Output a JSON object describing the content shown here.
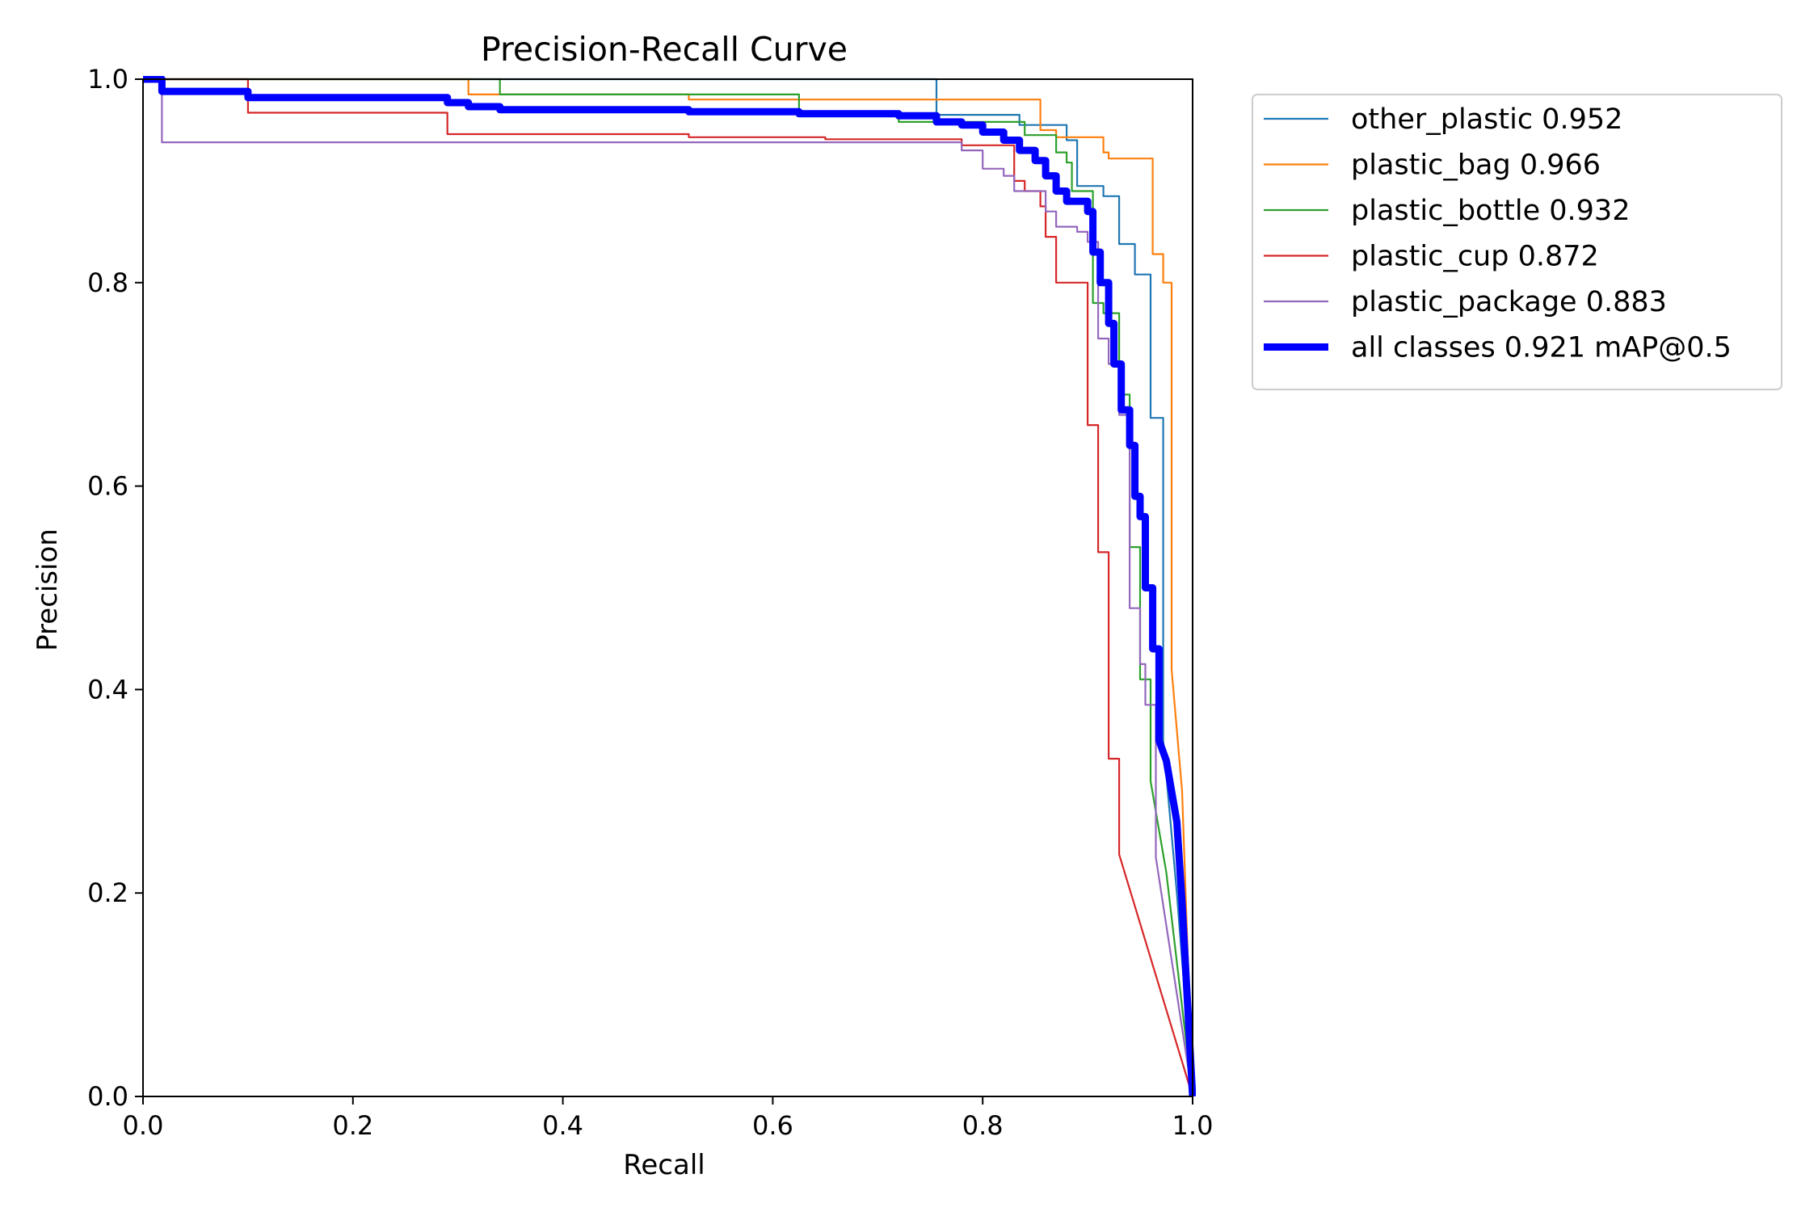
{
  "chart_data": {
    "type": "line",
    "title": "Precision-Recall Curve",
    "xlabel": "Recall",
    "ylabel": "Precision",
    "xlim": [
      0,
      1
    ],
    "ylim": [
      0,
      1
    ],
    "x_ticks": [
      0.0,
      0.2,
      0.4,
      0.6,
      0.8,
      1.0
    ],
    "y_ticks": [
      0.0,
      0.2,
      0.4,
      0.6,
      0.8,
      1.0
    ],
    "x_tick_labels": [
      "0.0",
      "0.2",
      "0.4",
      "0.6",
      "0.8",
      "1.0"
    ],
    "y_tick_labels": [
      "0.0",
      "0.2",
      "0.4",
      "0.6",
      "0.8",
      "1.0"
    ],
    "legend_position": "outside-top-right",
    "series": [
      {
        "name": "other_plastic",
        "label": "other_plastic 0.952",
        "color": "#1f77b4",
        "emphasis": "thin",
        "points": [
          [
            0,
            1
          ],
          [
            0.756,
            1
          ],
          [
            0.756,
            0.965
          ],
          [
            0.835,
            0.965
          ],
          [
            0.835,
            0.955
          ],
          [
            0.88,
            0.955
          ],
          [
            0.88,
            0.94
          ],
          [
            0.89,
            0.94
          ],
          [
            0.89,
            0.895
          ],
          [
            0.915,
            0.895
          ],
          [
            0.915,
            0.885
          ],
          [
            0.93,
            0.885
          ],
          [
            0.93,
            0.838
          ],
          [
            0.945,
            0.838
          ],
          [
            0.945,
            0.808
          ],
          [
            0.96,
            0.808
          ],
          [
            0.96,
            0.667
          ],
          [
            0.972,
            0.667
          ],
          [
            0.972,
            0.35
          ],
          [
            0.985,
            0.2
          ],
          [
            1,
            0.0
          ]
        ]
      },
      {
        "name": "plastic_bag",
        "label": "plastic_bag 0.966",
        "color": "#ff7f0e",
        "emphasis": "thin",
        "points": [
          [
            0,
            1
          ],
          [
            0.31,
            1
          ],
          [
            0.31,
            0.985
          ],
          [
            0.52,
            0.985
          ],
          [
            0.52,
            0.98
          ],
          [
            0.855,
            0.98
          ],
          [
            0.855,
            0.95
          ],
          [
            0.87,
            0.95
          ],
          [
            0.87,
            0.943
          ],
          [
            0.915,
            0.943
          ],
          [
            0.915,
            0.928
          ],
          [
            0.92,
            0.928
          ],
          [
            0.92,
            0.922
          ],
          [
            0.962,
            0.922
          ],
          [
            0.962,
            0.828
          ],
          [
            0.972,
            0.828
          ],
          [
            0.972,
            0.8
          ],
          [
            0.98,
            0.8
          ],
          [
            0.98,
            0.42
          ],
          [
            0.99,
            0.3
          ],
          [
            1,
            0.0
          ]
        ]
      },
      {
        "name": "plastic_bottle",
        "label": "plastic_bottle 0.932",
        "color": "#2ca02c",
        "emphasis": "thin",
        "points": [
          [
            0,
            1
          ],
          [
            0.34,
            1
          ],
          [
            0.34,
            0.985
          ],
          [
            0.625,
            0.985
          ],
          [
            0.625,
            0.968
          ],
          [
            0.72,
            0.968
          ],
          [
            0.72,
            0.958
          ],
          [
            0.84,
            0.958
          ],
          [
            0.84,
            0.945
          ],
          [
            0.87,
            0.945
          ],
          [
            0.87,
            0.928
          ],
          [
            0.88,
            0.928
          ],
          [
            0.88,
            0.918
          ],
          [
            0.885,
            0.918
          ],
          [
            0.885,
            0.89
          ],
          [
            0.905,
            0.89
          ],
          [
            0.905,
            0.78
          ],
          [
            0.915,
            0.78
          ],
          [
            0.915,
            0.77
          ],
          [
            0.93,
            0.77
          ],
          [
            0.93,
            0.69
          ],
          [
            0.94,
            0.69
          ],
          [
            0.94,
            0.54
          ],
          [
            0.95,
            0.54
          ],
          [
            0.95,
            0.41
          ],
          [
            0.96,
            0.41
          ],
          [
            0.96,
            0.31
          ],
          [
            0.975,
            0.22
          ],
          [
            1,
            0.0
          ]
        ]
      },
      {
        "name": "plastic_cup",
        "label": "plastic_cup 0.872",
        "color": "#d62728",
        "emphasis": "thin",
        "points": [
          [
            0,
            1
          ],
          [
            0.1,
            1
          ],
          [
            0.1,
            0.967
          ],
          [
            0.29,
            0.967
          ],
          [
            0.29,
            0.946
          ],
          [
            0.52,
            0.946
          ],
          [
            0.52,
            0.943
          ],
          [
            0.65,
            0.943
          ],
          [
            0.65,
            0.941
          ],
          [
            0.78,
            0.941
          ],
          [
            0.78,
            0.935
          ],
          [
            0.83,
            0.935
          ],
          [
            0.83,
            0.9
          ],
          [
            0.84,
            0.9
          ],
          [
            0.84,
            0.89
          ],
          [
            0.855,
            0.89
          ],
          [
            0.855,
            0.875
          ],
          [
            0.86,
            0.875
          ],
          [
            0.86,
            0.845
          ],
          [
            0.87,
            0.845
          ],
          [
            0.87,
            0.8
          ],
          [
            0.9,
            0.8
          ],
          [
            0.9,
            0.66
          ],
          [
            0.91,
            0.66
          ],
          [
            0.91,
            0.535
          ],
          [
            0.92,
            0.535
          ],
          [
            0.92,
            0.332
          ],
          [
            0.93,
            0.332
          ],
          [
            0.93,
            0.238
          ],
          [
            1,
            0.0
          ]
        ]
      },
      {
        "name": "plastic_package",
        "label": "plastic_package 0.883",
        "color": "#9467bd",
        "emphasis": "thin",
        "points": [
          [
            0,
            1
          ],
          [
            0.018,
            1
          ],
          [
            0.018,
            0.938
          ],
          [
            0.78,
            0.938
          ],
          [
            0.78,
            0.93
          ],
          [
            0.8,
            0.93
          ],
          [
            0.8,
            0.912
          ],
          [
            0.82,
            0.912
          ],
          [
            0.82,
            0.905
          ],
          [
            0.83,
            0.905
          ],
          [
            0.83,
            0.89
          ],
          [
            0.86,
            0.89
          ],
          [
            0.86,
            0.87
          ],
          [
            0.87,
            0.87
          ],
          [
            0.87,
            0.855
          ],
          [
            0.89,
            0.855
          ],
          [
            0.89,
            0.85
          ],
          [
            0.9,
            0.85
          ],
          [
            0.9,
            0.84
          ],
          [
            0.91,
            0.84
          ],
          [
            0.91,
            0.745
          ],
          [
            0.92,
            0.745
          ],
          [
            0.92,
            0.72
          ],
          [
            0.93,
            0.72
          ],
          [
            0.93,
            0.67
          ],
          [
            0.94,
            0.67
          ],
          [
            0.94,
            0.48
          ],
          [
            0.95,
            0.48
          ],
          [
            0.95,
            0.425
          ],
          [
            0.955,
            0.425
          ],
          [
            0.955,
            0.385
          ],
          [
            0.965,
            0.385
          ],
          [
            0.965,
            0.235
          ],
          [
            1,
            0.0
          ]
        ]
      },
      {
        "name": "all_classes",
        "label": "all classes 0.921 mAP@0.5",
        "color": "#0000ff",
        "emphasis": "thick",
        "points": [
          [
            0,
            1
          ],
          [
            0.018,
            1
          ],
          [
            0.018,
            0.988
          ],
          [
            0.1,
            0.988
          ],
          [
            0.1,
            0.982
          ],
          [
            0.29,
            0.982
          ],
          [
            0.29,
            0.977
          ],
          [
            0.31,
            0.977
          ],
          [
            0.31,
            0.973
          ],
          [
            0.34,
            0.973
          ],
          [
            0.34,
            0.97
          ],
          [
            0.52,
            0.97
          ],
          [
            0.52,
            0.968
          ],
          [
            0.625,
            0.968
          ],
          [
            0.625,
            0.966
          ],
          [
            0.72,
            0.966
          ],
          [
            0.72,
            0.964
          ],
          [
            0.756,
            0.964
          ],
          [
            0.756,
            0.958
          ],
          [
            0.78,
            0.958
          ],
          [
            0.78,
            0.955
          ],
          [
            0.8,
            0.955
          ],
          [
            0.8,
            0.948
          ],
          [
            0.82,
            0.948
          ],
          [
            0.82,
            0.94
          ],
          [
            0.835,
            0.94
          ],
          [
            0.835,
            0.93
          ],
          [
            0.85,
            0.93
          ],
          [
            0.85,
            0.92
          ],
          [
            0.86,
            0.92
          ],
          [
            0.86,
            0.905
          ],
          [
            0.87,
            0.905
          ],
          [
            0.87,
            0.89
          ],
          [
            0.88,
            0.89
          ],
          [
            0.88,
            0.88
          ],
          [
            0.9,
            0.88
          ],
          [
            0.9,
            0.87
          ],
          [
            0.905,
            0.87
          ],
          [
            0.905,
            0.83
          ],
          [
            0.912,
            0.83
          ],
          [
            0.912,
            0.8
          ],
          [
            0.92,
            0.8
          ],
          [
            0.92,
            0.76
          ],
          [
            0.925,
            0.76
          ],
          [
            0.925,
            0.72
          ],
          [
            0.932,
            0.72
          ],
          [
            0.932,
            0.675
          ],
          [
            0.94,
            0.675
          ],
          [
            0.94,
            0.64
          ],
          [
            0.945,
            0.64
          ],
          [
            0.945,
            0.59
          ],
          [
            0.95,
            0.59
          ],
          [
            0.95,
            0.57
          ],
          [
            0.955,
            0.57
          ],
          [
            0.955,
            0.5
          ],
          [
            0.962,
            0.5
          ],
          [
            0.962,
            0.44
          ],
          [
            0.968,
            0.44
          ],
          [
            0.968,
            0.35
          ],
          [
            0.975,
            0.33
          ],
          [
            0.985,
            0.27
          ],
          [
            0.99,
            0.19
          ],
          [
            1,
            0.0
          ]
        ]
      }
    ]
  }
}
